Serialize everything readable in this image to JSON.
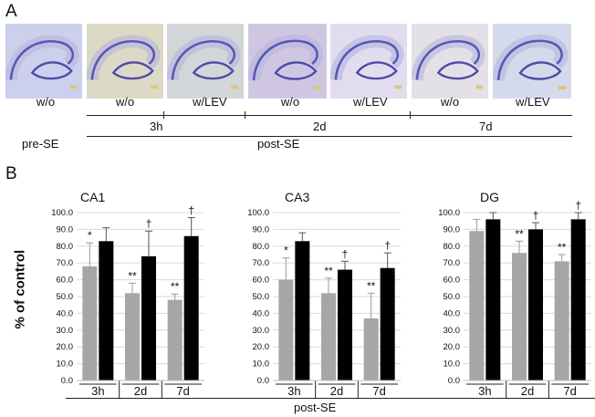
{
  "panelA": {
    "letter": "A",
    "images": [
      {
        "name": "pre-se-wo",
        "tint": "#ccd0ec"
      },
      {
        "name": "3h-wo",
        "tint": "#dcd9c6"
      },
      {
        "name": "3h-wlev",
        "tint": "#d3d6d8"
      },
      {
        "name": "2d-wo",
        "tint": "#cfc7e2"
      },
      {
        "name": "2d-wlev",
        "tint": "#e1ddee"
      },
      {
        "name": "7d-wo",
        "tint": "#e3e0e7"
      },
      {
        "name": "7d-wlev",
        "tint": "#d5d9ec"
      }
    ],
    "labels": [
      "w/o",
      "w/o",
      "w/LEV",
      "w/o",
      "w/LEV",
      "w/o",
      "w/LEV"
    ],
    "timepoints": [
      "3h",
      "2d",
      "7d"
    ],
    "pre_label": "pre-SE",
    "post_label": "post-SE"
  },
  "panelB": {
    "letter": "B",
    "ylabel": "% of control",
    "post_label": "post-SE",
    "colors": {
      "wo": "#a6a6a6",
      "wlev": "#000000"
    }
  },
  "chart_data": [
    {
      "type": "bar",
      "title": "CA1",
      "categories": [
        "3h",
        "2d",
        "7d"
      ],
      "series": [
        {
          "values": [
            68,
            52,
            48
          ],
          "errors": [
            14,
            6,
            3.5
          ],
          "marks": [
            "*",
            "**",
            "**"
          ]
        },
        {
          "values": [
            83,
            74,
            86
          ],
          "errors": [
            8,
            15,
            11
          ],
          "marks": [
            "",
            "†",
            "†"
          ]
        }
      ],
      "ylim": [
        0,
        100
      ],
      "yticks": [
        "0.0",
        "10.0",
        "20.0",
        "30.0",
        "40.0",
        "50.0",
        "60.0",
        "70.0",
        "80.0",
        "90.0",
        "100.0"
      ],
      "grid": true
    },
    {
      "type": "bar",
      "title": "CA3",
      "categories": [
        "3h",
        "2d",
        "7d"
      ],
      "series": [
        {
          "values": [
            60,
            52,
            37
          ],
          "errors": [
            13,
            9,
            15
          ],
          "marks": [
            "*",
            "**",
            "**"
          ]
        },
        {
          "values": [
            83,
            66,
            67
          ],
          "errors": [
            5,
            5,
            9
          ],
          "marks": [
            "",
            "†",
            "†"
          ]
        }
      ],
      "ylim": [
        0,
        100
      ],
      "yticks": [
        "0.0",
        "10.0",
        "20.0",
        "30.0",
        "40.0",
        "50.0",
        "60.0",
        "70.0",
        "80.0",
        "90.0",
        "100.0"
      ],
      "grid": true
    },
    {
      "type": "bar",
      "title": "DG",
      "categories": [
        "3h",
        "2d",
        "7d"
      ],
      "series": [
        {
          "values": [
            89,
            76,
            71
          ],
          "errors": [
            7,
            7,
            4
          ],
          "marks": [
            "",
            "**",
            "**"
          ]
        },
        {
          "values": [
            96,
            90,
            96
          ],
          "errors": [
            4,
            4,
            4
          ],
          "marks": [
            "",
            "†",
            "†"
          ]
        }
      ],
      "ylim": [
        0,
        100
      ],
      "yticks": [
        "0.0",
        "10.0",
        "20.0",
        "30.0",
        "40.0",
        "50.0",
        "60.0",
        "70.0",
        "80.0",
        "90.0",
        "100.0"
      ],
      "grid": true
    }
  ]
}
